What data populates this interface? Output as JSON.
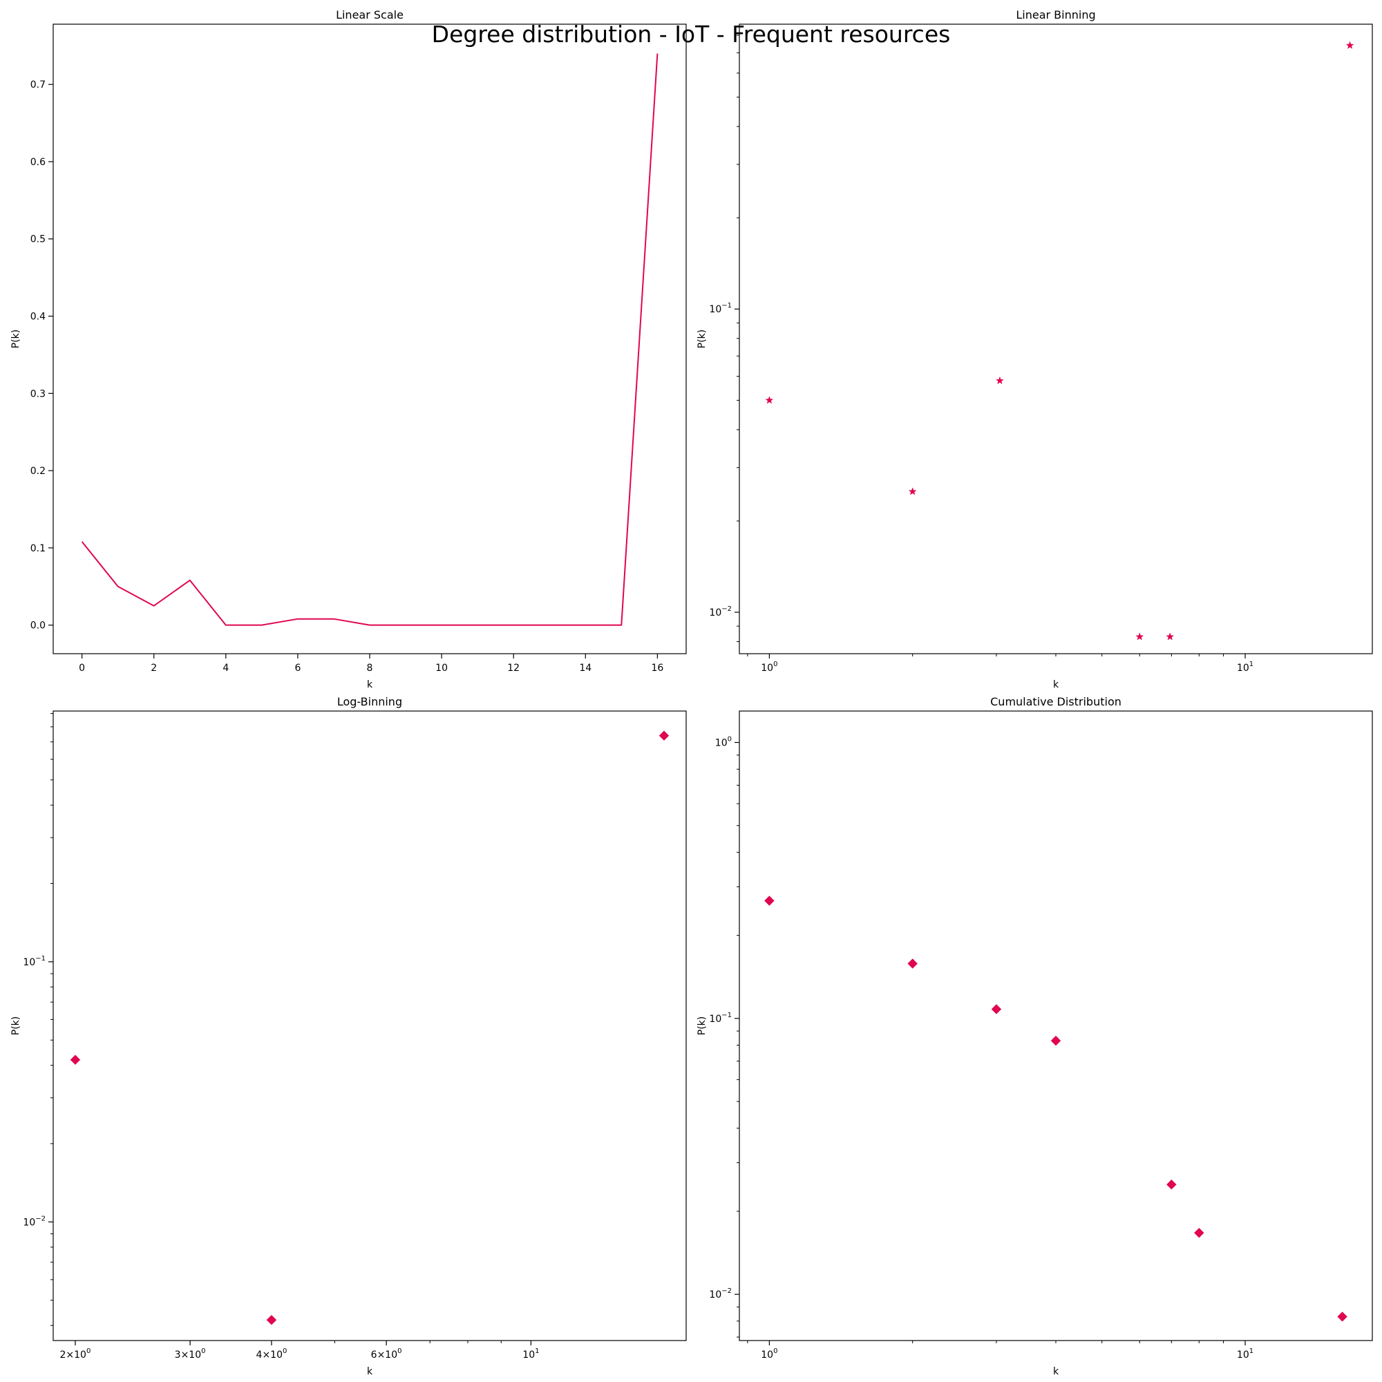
{
  "suptitle": "Degree distribution - IoT - Frequent resources",
  "colors": {
    "series": "#e0064f"
  },
  "chart_data": [
    {
      "type": "line",
      "title": "Linear Scale",
      "xlabel": "k",
      "ylabel": "P(k)",
      "xscale": "linear",
      "yscale": "linear",
      "xlim": [
        -0.8,
        16.8
      ],
      "ylim": [
        -0.037,
        0.778
      ],
      "xticks": [
        0,
        2,
        4,
        6,
        8,
        10,
        12,
        14,
        16
      ],
      "xtick_labels": [
        "0",
        "2",
        "4",
        "6",
        "8",
        "10",
        "12",
        "14",
        "16"
      ],
      "yticks": [
        0.0,
        0.1,
        0.2,
        0.3,
        0.4,
        0.5,
        0.6,
        0.7
      ],
      "ytick_labels": [
        "0.0",
        "0.1",
        "0.2",
        "0.3",
        "0.4",
        "0.5",
        "0.6",
        "0.7"
      ],
      "marker": "none",
      "grid": false,
      "x": [
        0,
        1,
        2,
        3,
        4,
        5,
        6,
        7,
        8,
        9,
        10,
        11,
        12,
        13,
        14,
        15,
        16
      ],
      "y": [
        0.108,
        0.05,
        0.025,
        0.058,
        0.0,
        0.0,
        0.008,
        0.008,
        0.0,
        0.0,
        0.0,
        0.0,
        0.0,
        0.0,
        0.0,
        0.0,
        0.74
      ]
    },
    {
      "type": "scatter",
      "title": "Linear Binning",
      "xlabel": "k",
      "ylabel": "P(k)",
      "xscale": "log",
      "yscale": "log",
      "xlim": [
        0.865,
        18.5
      ],
      "ylim": [
        0.0073,
        0.87
      ],
      "xticks": [
        1,
        10
      ],
      "xtick_labels": [
        "10^0",
        "10^1"
      ],
      "yticks": [
        0.01,
        0.1
      ],
      "ytick_labels": [
        "10^-2",
        "10^-1"
      ],
      "marker": "star",
      "grid": false,
      "x": [
        1,
        2,
        3.05,
        6,
        6.95,
        16.6
      ],
      "y": [
        0.05,
        0.025,
        0.058,
        0.0083,
        0.0083,
        0.74
      ]
    },
    {
      "type": "scatter",
      "title": "Log-Binning",
      "xlabel": "k",
      "ylabel": "P(k)",
      "xscale": "log",
      "yscale": "log",
      "xlim": [
        1.85,
        17.3
      ],
      "ylim": [
        0.0035,
        0.92
      ],
      "xticks": [
        2,
        3,
        4,
        6,
        10
      ],
      "xtick_labels": [
        "2×10^0",
        "3×10^0",
        "4×10^0",
        "6×10^0",
        "10^1"
      ],
      "yticks": [
        0.01,
        0.1
      ],
      "ytick_labels": [
        "10^-2",
        "10^-1"
      ],
      "marker": "diamond",
      "grid": false,
      "x": [
        2,
        4,
        16
      ],
      "y": [
        0.042,
        0.0042,
        0.74
      ]
    },
    {
      "type": "scatter",
      "title": "Cumulative Distribution",
      "xlabel": "k",
      "ylabel": "P(k)",
      "xscale": "log",
      "yscale": "log",
      "xlim": [
        0.865,
        18.5
      ],
      "ylim": [
        0.0068,
        1.3
      ],
      "xticks": [
        1,
        10
      ],
      "xtick_labels": [
        "10^0",
        "10^1"
      ],
      "yticks": [
        0.01,
        0.1,
        1
      ],
      "ytick_labels": [
        "10^-2",
        "10^-1",
        "10^0"
      ],
      "marker": "diamond",
      "grid": false,
      "x": [
        1,
        2,
        3,
        4,
        7,
        8,
        16
      ],
      "y": [
        0.267,
        0.158,
        0.108,
        0.083,
        0.025,
        0.0167,
        0.0083
      ]
    }
  ]
}
